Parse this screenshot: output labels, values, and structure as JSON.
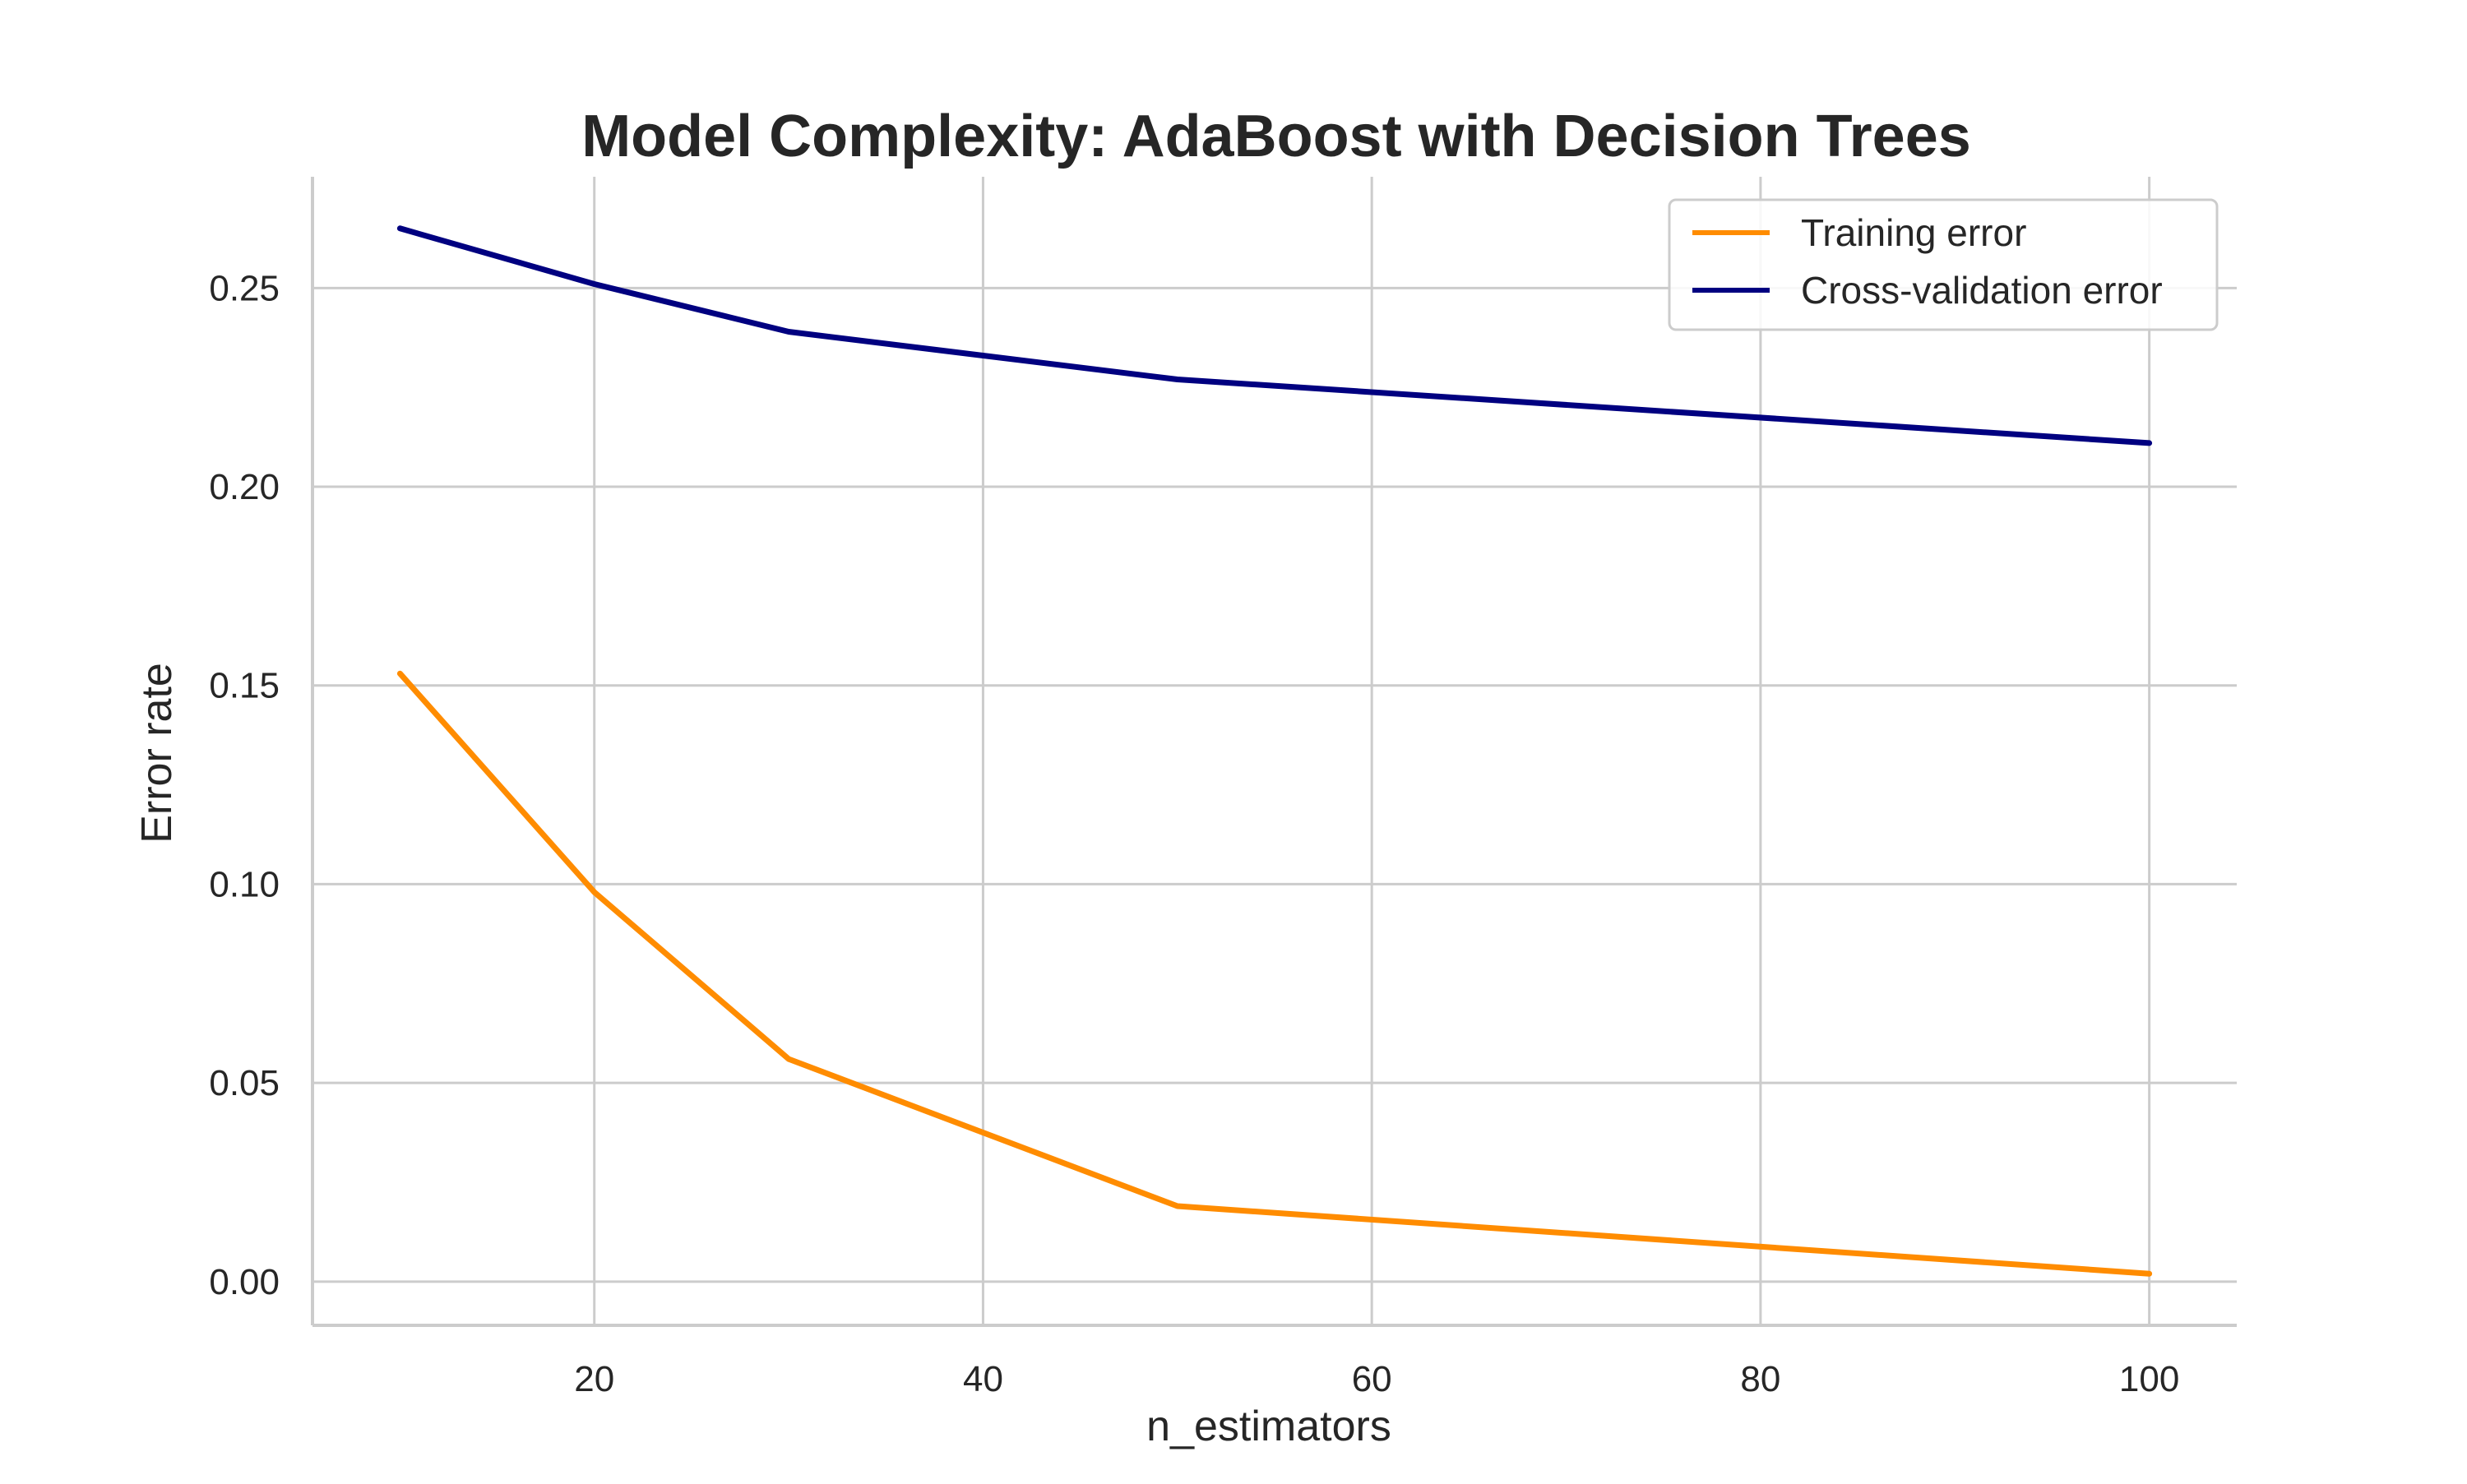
{
  "chart_data": {
    "type": "line",
    "title": "Model Complexity: AdaBoost with Decision Trees",
    "xlabel": "n_estimators",
    "ylabel": "Error rate",
    "xlim": [
      5.5,
      104.5
    ],
    "ylim": [
      -0.011,
      0.278
    ],
    "xticks": [
      20,
      40,
      60,
      80,
      100
    ],
    "xtick_labels": [
      "20",
      "40",
      "60",
      "80",
      "100"
    ],
    "yticks": [
      0.0,
      0.05,
      0.1,
      0.15,
      0.2,
      0.25
    ],
    "ytick_labels": [
      "0.00",
      "0.05",
      "0.10",
      "0.15",
      "0.20",
      "0.25"
    ],
    "grid": true,
    "legend_position": "top-right",
    "x": [
      10,
      20,
      30,
      50,
      100
    ],
    "series": [
      {
        "name": "Training error",
        "color": "#ff8c00",
        "values": [
          0.153,
          0.098,
          0.056,
          0.019,
          0.002
        ]
      },
      {
        "name": "Cross-validation error",
        "color": "#000080",
        "values": [
          0.265,
          0.251,
          0.239,
          0.227,
          0.211
        ]
      }
    ]
  }
}
